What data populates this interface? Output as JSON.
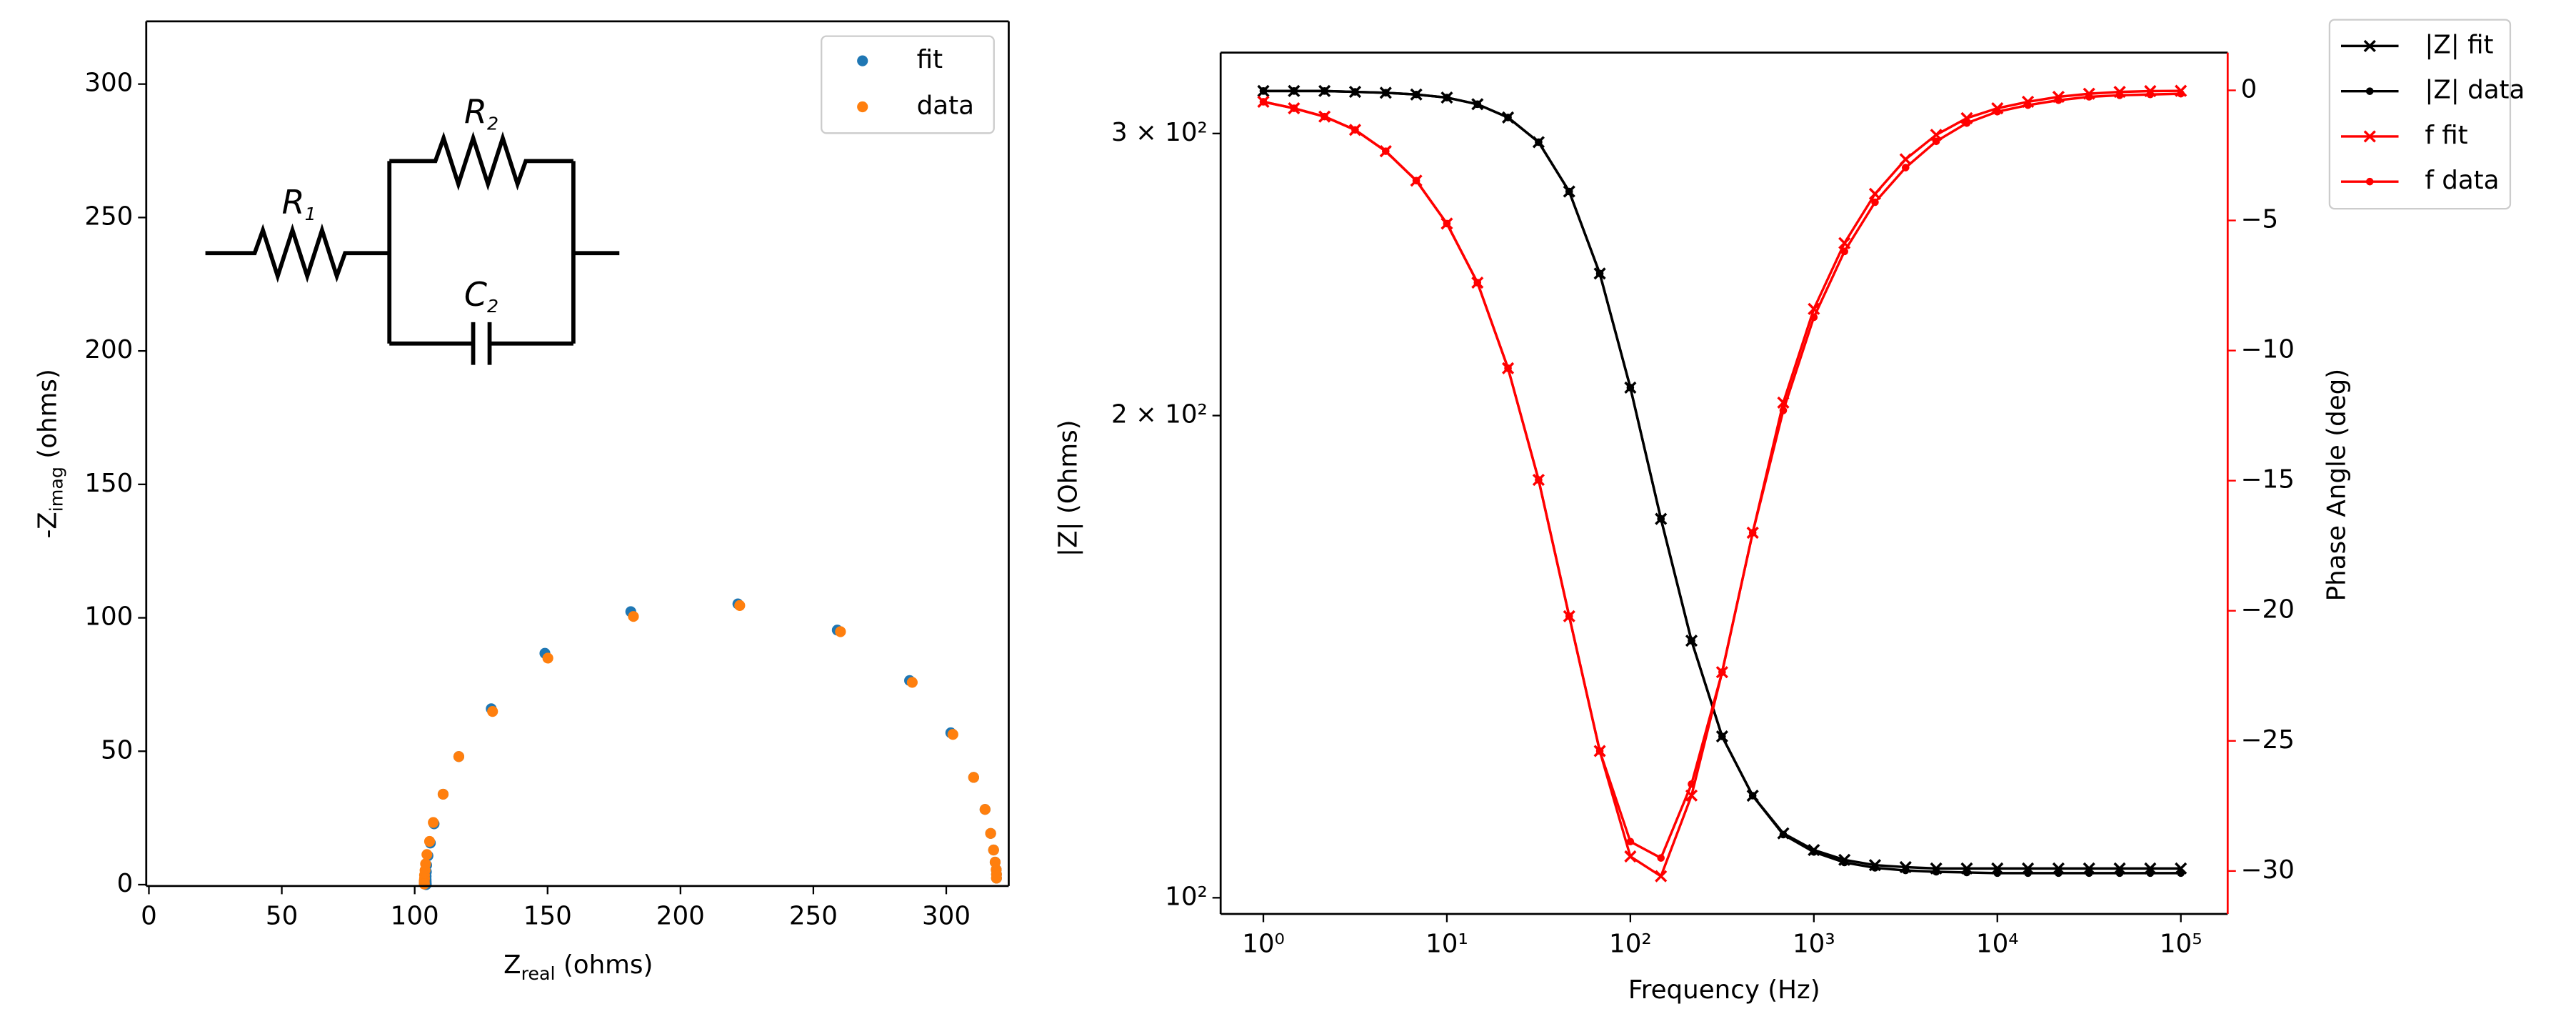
{
  "chart_data": [
    {
      "type": "scatter",
      "xlabel": {
        "text": "Z",
        "sub": "real",
        "unit": " (ohms)"
      },
      "ylabel": {
        "text": "-Z",
        "sub": "imag",
        "unit": " (ohms)"
      },
      "xlim": [
        -1,
        323.5
      ],
      "ylim": [
        -0.5,
        323.5
      ],
      "xticks": [
        0,
        50,
        100,
        150,
        200,
        250,
        300
      ],
      "yticks": [
        0,
        50,
        100,
        150,
        200,
        250,
        300
      ],
      "legend": "upper right",
      "annotations": [
        {
          "text": "R",
          "sub": "1"
        },
        {
          "text": "R",
          "sub": "2"
        },
        {
          "text": "C",
          "sub": "2"
        }
      ],
      "series": [
        {
          "name": "fit",
          "color": "#1f77b4",
          "x": [
            318.9,
            318.9,
            318.8,
            318.4,
            317.8,
            316.7,
            314.6,
            310.3,
            301.7,
            286.2,
            259.0,
            221.6,
            181.3,
            149.0,
            128.8,
            116.6,
            110.7,
            107.3,
            105.9,
            105.0,
            104.5,
            104.4,
            104.3,
            104.3,
            104.3,
            104.3,
            104.3,
            104.3,
            104.3,
            104.3,
            104.3
          ],
          "values": [
            2.45,
            3.84,
            5.62,
            8.45,
            12.99,
            19.2,
            28.2,
            40.2,
            56.9,
            76.5,
            95.4,
            105.2,
            102.3,
            86.7,
            65.9,
            48.0,
            33.9,
            22.8,
            15.6,
            10.8,
            7.3,
            4.8,
            3.1,
            1.95,
            1.26,
            0.8,
            0.46,
            0.24,
            0.11,
            0.05,
            0.04
          ]
        },
        {
          "name": "data",
          "color": "#ff7f0e",
          "x": [
            318.9,
            318.9,
            318.8,
            318.4,
            317.8,
            316.7,
            314.6,
            310.3,
            302.5,
            287.2,
            260.2,
            222.3,
            182.3,
            150.1,
            129.3,
            116.6,
            110.7,
            107.0,
            105.6,
            104.6,
            104.1,
            103.9,
            103.7,
            103.7,
            103.6,
            103.6,
            103.6,
            103.6,
            103.6,
            103.6,
            103.6
          ],
          "values": [
            2.45,
            3.84,
            5.62,
            8.45,
            12.99,
            19.2,
            28.2,
            40.2,
            56.3,
            75.8,
            94.8,
            104.6,
            100.5,
            84.9,
            64.9,
            48.0,
            33.9,
            23.3,
            16.2,
            11.3,
            7.8,
            5.4,
            3.6,
            2.3,
            1.48,
            1.03,
            0.69,
            0.45,
            0.34,
            0.29,
            0.24
          ]
        }
      ]
    },
    {
      "type": "line",
      "xlabel": "Frequency (Hz)",
      "ylabel": "|Z| (Ohms)",
      "y2label": "Phase Angle (deg)",
      "log_x": true,
      "log_y": true,
      "y2_color": "#ff0000",
      "xlim": [
        0.585,
        180000
      ],
      "ylim": [
        97.7,
        337
      ],
      "y2lim": [
        -31.65,
        1.45
      ],
      "xticks": [
        {
          "value": 1,
          "label": "10⁰"
        },
        {
          "value": 10,
          "label": "10¹"
        },
        {
          "value": 100,
          "label": "10²"
        },
        {
          "value": 1000,
          "label": "10³"
        },
        {
          "value": 10000,
          "label": "10⁴"
        },
        {
          "value": 100000,
          "label": "10⁵"
        }
      ],
      "yticks": [
        {
          "value": 100,
          "label": "10²"
        },
        {
          "value": 200,
          "label": "2 × 10²"
        },
        {
          "value": 300,
          "label": "3 × 10²"
        }
      ],
      "y2ticks": [
        {
          "value": 0,
          "label": "0"
        },
        {
          "value": -5,
          "label": "−5"
        },
        {
          "value": -10,
          "label": "−10"
        },
        {
          "value": -15,
          "label": "−15"
        },
        {
          "value": -20,
          "label": "−20"
        },
        {
          "value": -25,
          "label": "−25"
        },
        {
          "value": -30,
          "label": "−30"
        }
      ],
      "legend": "outside upper right",
      "x": [
        1,
        1.468,
        2.154,
        3.162,
        4.642,
        6.813,
        10,
        14.68,
        21.54,
        31.62,
        46.42,
        68.13,
        100,
        146.8,
        215.4,
        316.2,
        464.2,
        681.3,
        1000,
        1468,
        2154,
        3162,
        4642,
        6813,
        10000,
        14680,
        21540,
        31620,
        46420,
        68130,
        100000
      ],
      "series": [
        {
          "name": "|Z| fit",
          "color": "#000000",
          "marker": "x",
          "values": [
            318.9,
            318.9,
            318.9,
            318.5,
            318.1,
            317.3,
            315.9,
            312.9,
            307.0,
            296.3,
            276.0,
            245.3,
            208.2,
            172.4,
            144.7,
            126.1,
            115.8,
            109.7,
            107.1,
            105.6,
            104.8,
            104.5,
            104.3,
            104.3,
            104.3,
            104.3,
            104.3,
            104.3,
            104.3,
            104.3,
            104.3
          ]
        },
        {
          "name": "|Z| data",
          "color": "#000000",
          "marker": "o",
          "values": [
            318.9,
            318.9,
            318.9,
            318.5,
            318.1,
            317.3,
            315.9,
            312.9,
            307.0,
            296.3,
            276.0,
            245.3,
            208.2,
            172.4,
            144.7,
            126.1,
            115.8,
            109.5,
            106.8,
            105.2,
            104.4,
            104.0,
            103.8,
            103.7,
            103.6,
            103.6,
            103.6,
            103.6,
            103.6,
            103.6,
            103.6
          ]
        },
        {
          "name": "f fit",
          "color": "#ff0000",
          "marker": "x",
          "axis": "y2",
          "values": [
            -0.44,
            -0.69,
            -1.01,
            -1.52,
            -2.34,
            -3.47,
            -5.12,
            -7.39,
            -10.68,
            -14.97,
            -20.21,
            -25.39,
            -29.44,
            -30.2,
            -27.1,
            -22.36,
            -17.0,
            -12.0,
            -8.4,
            -5.87,
            -3.98,
            -2.65,
            -1.71,
            -1.07,
            -0.69,
            -0.44,
            -0.25,
            -0.13,
            -0.06,
            -0.03,
            -0.02
          ]
        },
        {
          "name": "f data",
          "color": "#ff0000",
          "marker": "o",
          "axis": "y2",
          "values": [
            -0.44,
            -0.69,
            -1.01,
            -1.52,
            -2.34,
            -3.47,
            -5.12,
            -7.39,
            -10.68,
            -14.97,
            -20.21,
            -25.39,
            -28.87,
            -29.5,
            -26.66,
            -22.36,
            -17.0,
            -12.3,
            -8.72,
            -6.19,
            -4.3,
            -2.97,
            -1.96,
            -1.26,
            -0.82,
            -0.57,
            -0.38,
            -0.25,
            -0.19,
            -0.16,
            -0.13
          ]
        }
      ]
    }
  ]
}
